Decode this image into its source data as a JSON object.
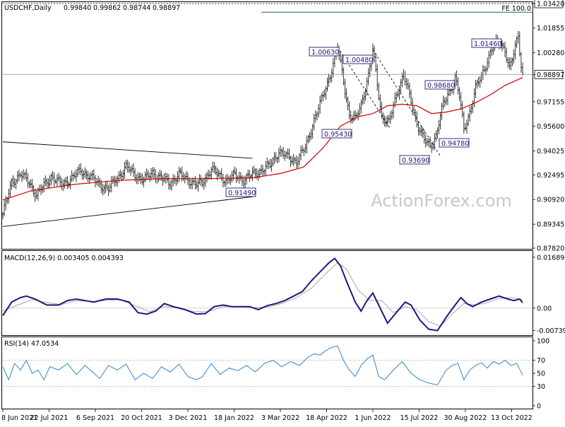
{
  "chart_data": [
    {
      "type": "candlestick",
      "title": "USDCHF,Daily",
      "ohlc": [
        "0.99840",
        "0.99862",
        "0.98744",
        "0.98897"
      ],
      "y_ticks": [
        "1.03420",
        "1.01855",
        "1.00280",
        "0.98897",
        "0.97155",
        "0.95600",
        "0.94025",
        "0.92495",
        "0.90920",
        "0.89345",
        "0.87820"
      ],
      "ylim": [
        0.8782,
        1.0342
      ],
      "current_price": "0.98897",
      "annotations": [
        {
          "text": "FE 100.0",
          "value": 1.0287
        },
        {
          "text": "1.00630",
          "value": 1.0063
        },
        {
          "text": "1.00480",
          "value": 1.0048
        },
        {
          "text": "0.95430",
          "value": 0.9543
        },
        {
          "text": "0.98680",
          "value": 0.9868
        },
        {
          "text": "1.01460",
          "value": 1.0146
        },
        {
          "text": "0.94780",
          "value": 0.9478
        },
        {
          "text": "0.93690",
          "value": 0.9369
        },
        {
          "text": "0.91490",
          "value": 0.9149
        }
      ],
      "x_tick_labels": [
        "8 Jun 2021",
        "22 Jul 2021",
        "6 Sep 2021",
        "20 Oct 2021",
        "3 Dec 2021",
        "18 Jan 2022",
        "3 Mar 2022",
        "18 Apr 2022",
        "1 Jun 2022",
        "15 Jul 2022",
        "30 Aug 2022",
        "13 Oct 2022"
      ],
      "close_path": [
        [
          0,
          0.9
        ],
        [
          6,
          0.92
        ],
        [
          12,
          0.9255
        ],
        [
          18,
          0.92
        ],
        [
          23,
          0.912
        ],
        [
          27,
          0.917
        ],
        [
          33,
          0.924
        ],
        [
          40,
          0.9185
        ],
        [
          47,
          0.923
        ],
        [
          53,
          0.9275
        ],
        [
          60,
          0.9235
        ],
        [
          66,
          0.9185
        ],
        [
          72,
          0.916
        ],
        [
          78,
          0.923
        ],
        [
          84,
          0.93
        ],
        [
          90,
          0.925
        ],
        [
          96,
          0.9215
        ],
        [
          102,
          0.9265
        ],
        [
          108,
          0.9225
        ],
        [
          114,
          0.92
        ],
        [
          120,
          0.925
        ],
        [
          126,
          0.922
        ],
        [
          132,
          0.9185
        ],
        [
          136,
          0.92
        ],
        [
          142,
          0.929
        ],
        [
          147,
          0.9245
        ],
        [
          152,
          0.9215
        ],
        [
          158,
          0.9245
        ],
        [
          164,
          0.922
        ],
        [
          170,
          0.925
        ],
        [
          176,
          0.928
        ],
        [
          182,
          0.931
        ],
        [
          188,
          0.94
        ],
        [
          194,
          0.936
        ],
        [
          200,
          0.934
        ],
        [
          206,
          0.942
        ],
        [
          212,
          0.96
        ],
        [
          218,
          0.975
        ],
        [
          224,
          0.992
        ],
        [
          228,
          1.0063
        ],
        [
          232,
          0.985
        ],
        [
          236,
          0.963
        ],
        [
          240,
          0.96
        ],
        [
          244,
          0.97
        ],
        [
          249,
          0.988
        ],
        [
          252,
          1.0048
        ],
        [
          255,
          0.983
        ],
        [
          258,
          0.962
        ],
        [
          263,
          0.958
        ],
        [
          268,
          0.976
        ],
        [
          273,
          0.989
        ],
        [
          277,
          0.975
        ],
        [
          282,
          0.958
        ],
        [
          287,
          0.947
        ],
        [
          291,
          0.943
        ],
        [
          295,
          0.95
        ],
        [
          300,
          0.97
        ],
        [
          305,
          0.98
        ],
        [
          308,
          0.9868
        ],
        [
          311,
          0.975
        ],
        [
          314,
          0.954
        ],
        [
          318,
          0.965
        ],
        [
          322,
          0.98
        ],
        [
          326,
          0.988
        ],
        [
          330,
          0.998
        ],
        [
          334,
          1.007
        ],
        [
          338,
          1.01
        ],
        [
          342,
          1.005
        ],
        [
          345,
          0.992
        ],
        [
          348,
          1.002
        ],
        [
          351,
          1.0146
        ],
        [
          353,
          0.995
        ],
        [
          354,
          0.989
        ]
      ],
      "ma_path": [
        [
          0,
          0.909
        ],
        [
          20,
          0.915
        ],
        [
          50,
          0.919
        ],
        [
          80,
          0.9215
        ],
        [
          110,
          0.9225
        ],
        [
          140,
          0.9225
        ],
        [
          170,
          0.923
        ],
        [
          190,
          0.926
        ],
        [
          205,
          0.93
        ],
        [
          218,
          0.942
        ],
        [
          230,
          0.956
        ],
        [
          242,
          0.962
        ],
        [
          252,
          0.964
        ],
        [
          262,
          0.969
        ],
        [
          272,
          0.97
        ],
        [
          282,
          0.969
        ],
        [
          292,
          0.964
        ],
        [
          302,
          0.965
        ],
        [
          312,
          0.967
        ],
        [
          322,
          0.971
        ],
        [
          332,
          0.976
        ],
        [
          342,
          0.982
        ],
        [
          354,
          0.987
        ]
      ],
      "trendlines": [
        [
          [
            0,
            0.946
          ],
          [
            170,
            0.9355
          ]
        ],
        [
          [
            0,
            0.892
          ],
          [
            170,
            0.911
          ]
        ],
        [
          [
            228,
            1.0063
          ],
          [
            264,
            0.9543
          ]
        ],
        [
          [
            252,
            1.0048
          ],
          [
            298,
            0.9369
          ]
        ]
      ]
    },
    {
      "type": "line",
      "title": "MACD(12,26,9) 0.003405 0.004393",
      "y_ticks": [
        "0.016893",
        "0.00",
        "-0.007393"
      ],
      "ylim": [
        -0.0085,
        0.0178
      ],
      "series": [
        {
          "name": "MACD",
          "points": [
            [
              0,
              -0.0025
            ],
            [
              6,
              0.002
            ],
            [
              12,
              0.0035
            ],
            [
              16,
              0.004
            ],
            [
              22,
              0.003
            ],
            [
              30,
              0.001
            ],
            [
              38,
              0.001
            ],
            [
              44,
              0.0025
            ],
            [
              50,
              0.003
            ],
            [
              56,
              0.0025
            ],
            [
              62,
              0.002
            ],
            [
              70,
              0.003
            ],
            [
              78,
              0.003
            ],
            [
              86,
              0.002
            ],
            [
              92,
              -0.0015
            ],
            [
              98,
              -0.002
            ],
            [
              104,
              -0.001
            ],
            [
              110,
              0.0015
            ],
            [
              116,
              0.0005
            ],
            [
              124,
              -0.0005
            ],
            [
              132,
              -0.002
            ],
            [
              138,
              -0.0018
            ],
            [
              144,
              0.0005
            ],
            [
              150,
              0.001
            ],
            [
              156,
              0.0005
            ],
            [
              162,
              0.0005
            ],
            [
              168,
              0.0005
            ],
            [
              174,
              -0.0005
            ],
            [
              180,
              0.0008
            ],
            [
              186,
              0.0015
            ],
            [
              192,
              0.0025
            ],
            [
              198,
              0.004
            ],
            [
              204,
              0.0055
            ],
            [
              210,
              0.009
            ],
            [
              216,
              0.012
            ],
            [
              222,
              0.015
            ],
            [
              226,
              0.0165
            ],
            [
              230,
              0.014
            ],
            [
              234,
              0.009
            ],
            [
              240,
              0.002
            ],
            [
              244,
              -0.001
            ],
            [
              248,
              0.0025
            ],
            [
              252,
              0.005
            ],
            [
              256,
              0.001
            ],
            [
              262,
              -0.005
            ],
            [
              268,
              -0.0015
            ],
            [
              274,
              0.002
            ],
            [
              278,
              0.001
            ],
            [
              284,
              -0.004
            ],
            [
              290,
              -0.007
            ],
            [
              296,
              -0.0075
            ],
            [
              302,
              -0.003
            ],
            [
              308,
              0.001
            ],
            [
              312,
              0.0035
            ],
            [
              316,
              0.0015
            ],
            [
              320,
              0.0005
            ],
            [
              326,
              0.002
            ],
            [
              332,
              0.003
            ],
            [
              338,
              0.004
            ],
            [
              344,
              0.003
            ],
            [
              348,
              0.0025
            ],
            [
              352,
              0.003
            ],
            [
              354,
              0.0018
            ]
          ]
        },
        {
          "name": "Signal",
          "points": [
            [
              0,
              -0.001
            ],
            [
              10,
              0.001
            ],
            [
              20,
              0.0028
            ],
            [
              30,
              0.0018
            ],
            [
              40,
              0.0012
            ],
            [
              50,
              0.0025
            ],
            [
              60,
              0.0022
            ],
            [
              70,
              0.0025
            ],
            [
              80,
              0.0028
            ],
            [
              90,
              0.0008
            ],
            [
              100,
              -0.0012
            ],
            [
              110,
              0.0005
            ],
            [
              120,
              0.0002
            ],
            [
              130,
              -0.0012
            ],
            [
              140,
              -0.0012
            ],
            [
              150,
              0.0005
            ],
            [
              160,
              0.0005
            ],
            [
              170,
              0.0002
            ],
            [
              180,
              0.0003
            ],
            [
              190,
              0.0015
            ],
            [
              200,
              0.0035
            ],
            [
              210,
              0.0065
            ],
            [
              220,
              0.0115
            ],
            [
              228,
              0.015
            ],
            [
              234,
              0.013
            ],
            [
              242,
              0.006
            ],
            [
              250,
              0.0025
            ],
            [
              258,
              0.0025
            ],
            [
              266,
              -0.0015
            ],
            [
              274,
              0.0005
            ],
            [
              282,
              -0.0005
            ],
            [
              290,
              -0.0045
            ],
            [
              298,
              -0.006
            ],
            [
              306,
              -0.002
            ],
            [
              314,
              0.0015
            ],
            [
              322,
              0.001
            ],
            [
              330,
              0.0018
            ],
            [
              338,
              0.0032
            ],
            [
              346,
              0.0035
            ],
            [
              354,
              0.0028
            ]
          ]
        }
      ]
    },
    {
      "type": "line",
      "title": "RSI(14) 47.0534",
      "y_ticks": [
        "100",
        "70",
        "50",
        "30",
        "0"
      ],
      "ylim": [
        0,
        100
      ],
      "reference_lines": [
        70,
        30
      ],
      "series": [
        {
          "name": "RSI",
          "points": [
            [
              0,
              60
            ],
            [
              4,
              40
            ],
            [
              8,
              65
            ],
            [
              12,
              55
            ],
            [
              16,
              70
            ],
            [
              20,
              50
            ],
            [
              24,
              55
            ],
            [
              28,
              40
            ],
            [
              32,
              60
            ],
            [
              38,
              55
            ],
            [
              44,
              65
            ],
            [
              50,
              48
            ],
            [
              56,
              62
            ],
            [
              62,
              50
            ],
            [
              66,
              42
            ],
            [
              72,
              62
            ],
            [
              78,
              55
            ],
            [
              84,
              64
            ],
            [
              90,
              40
            ],
            [
              96,
              50
            ],
            [
              102,
              42
            ],
            [
              108,
              60
            ],
            [
              114,
              52
            ],
            [
              120,
              64
            ],
            [
              126,
              45
            ],
            [
              132,
              40
            ],
            [
              136,
              45
            ],
            [
              142,
              65
            ],
            [
              148,
              48
            ],
            [
              154,
              58
            ],
            [
              160,
              54
            ],
            [
              166,
              62
            ],
            [
              172,
              52
            ],
            [
              178,
              65
            ],
            [
              184,
              70
            ],
            [
              190,
              60
            ],
            [
              196,
              68
            ],
            [
              202,
              62
            ],
            [
              208,
              75
            ],
            [
              212,
              80
            ],
            [
              216,
              78
            ],
            [
              220,
              85
            ],
            [
              224,
              90
            ],
            [
              228,
              92
            ],
            [
              232,
              70
            ],
            [
              236,
              55
            ],
            [
              240,
              45
            ],
            [
              244,
              62
            ],
            [
              248,
              72
            ],
            [
              252,
              78
            ],
            [
              256,
              45
            ],
            [
              260,
              40
            ],
            [
              266,
              55
            ],
            [
              272,
              68
            ],
            [
              278,
              50
            ],
            [
              284,
              40
            ],
            [
              290,
              35
            ],
            [
              296,
              32
            ],
            [
              302,
              55
            ],
            [
              306,
              62
            ],
            [
              310,
              65
            ],
            [
              314,
              40
            ],
            [
              318,
              55
            ],
            [
              322,
              62
            ],
            [
              326,
              66
            ],
            [
              330,
              58
            ],
            [
              334,
              68
            ],
            [
              338,
              64
            ],
            [
              342,
              70
            ],
            [
              346,
              62
            ],
            [
              350,
              65
            ],
            [
              354,
              47
            ]
          ]
        }
      ]
    }
  ],
  "watermark": "ActionForex.com"
}
